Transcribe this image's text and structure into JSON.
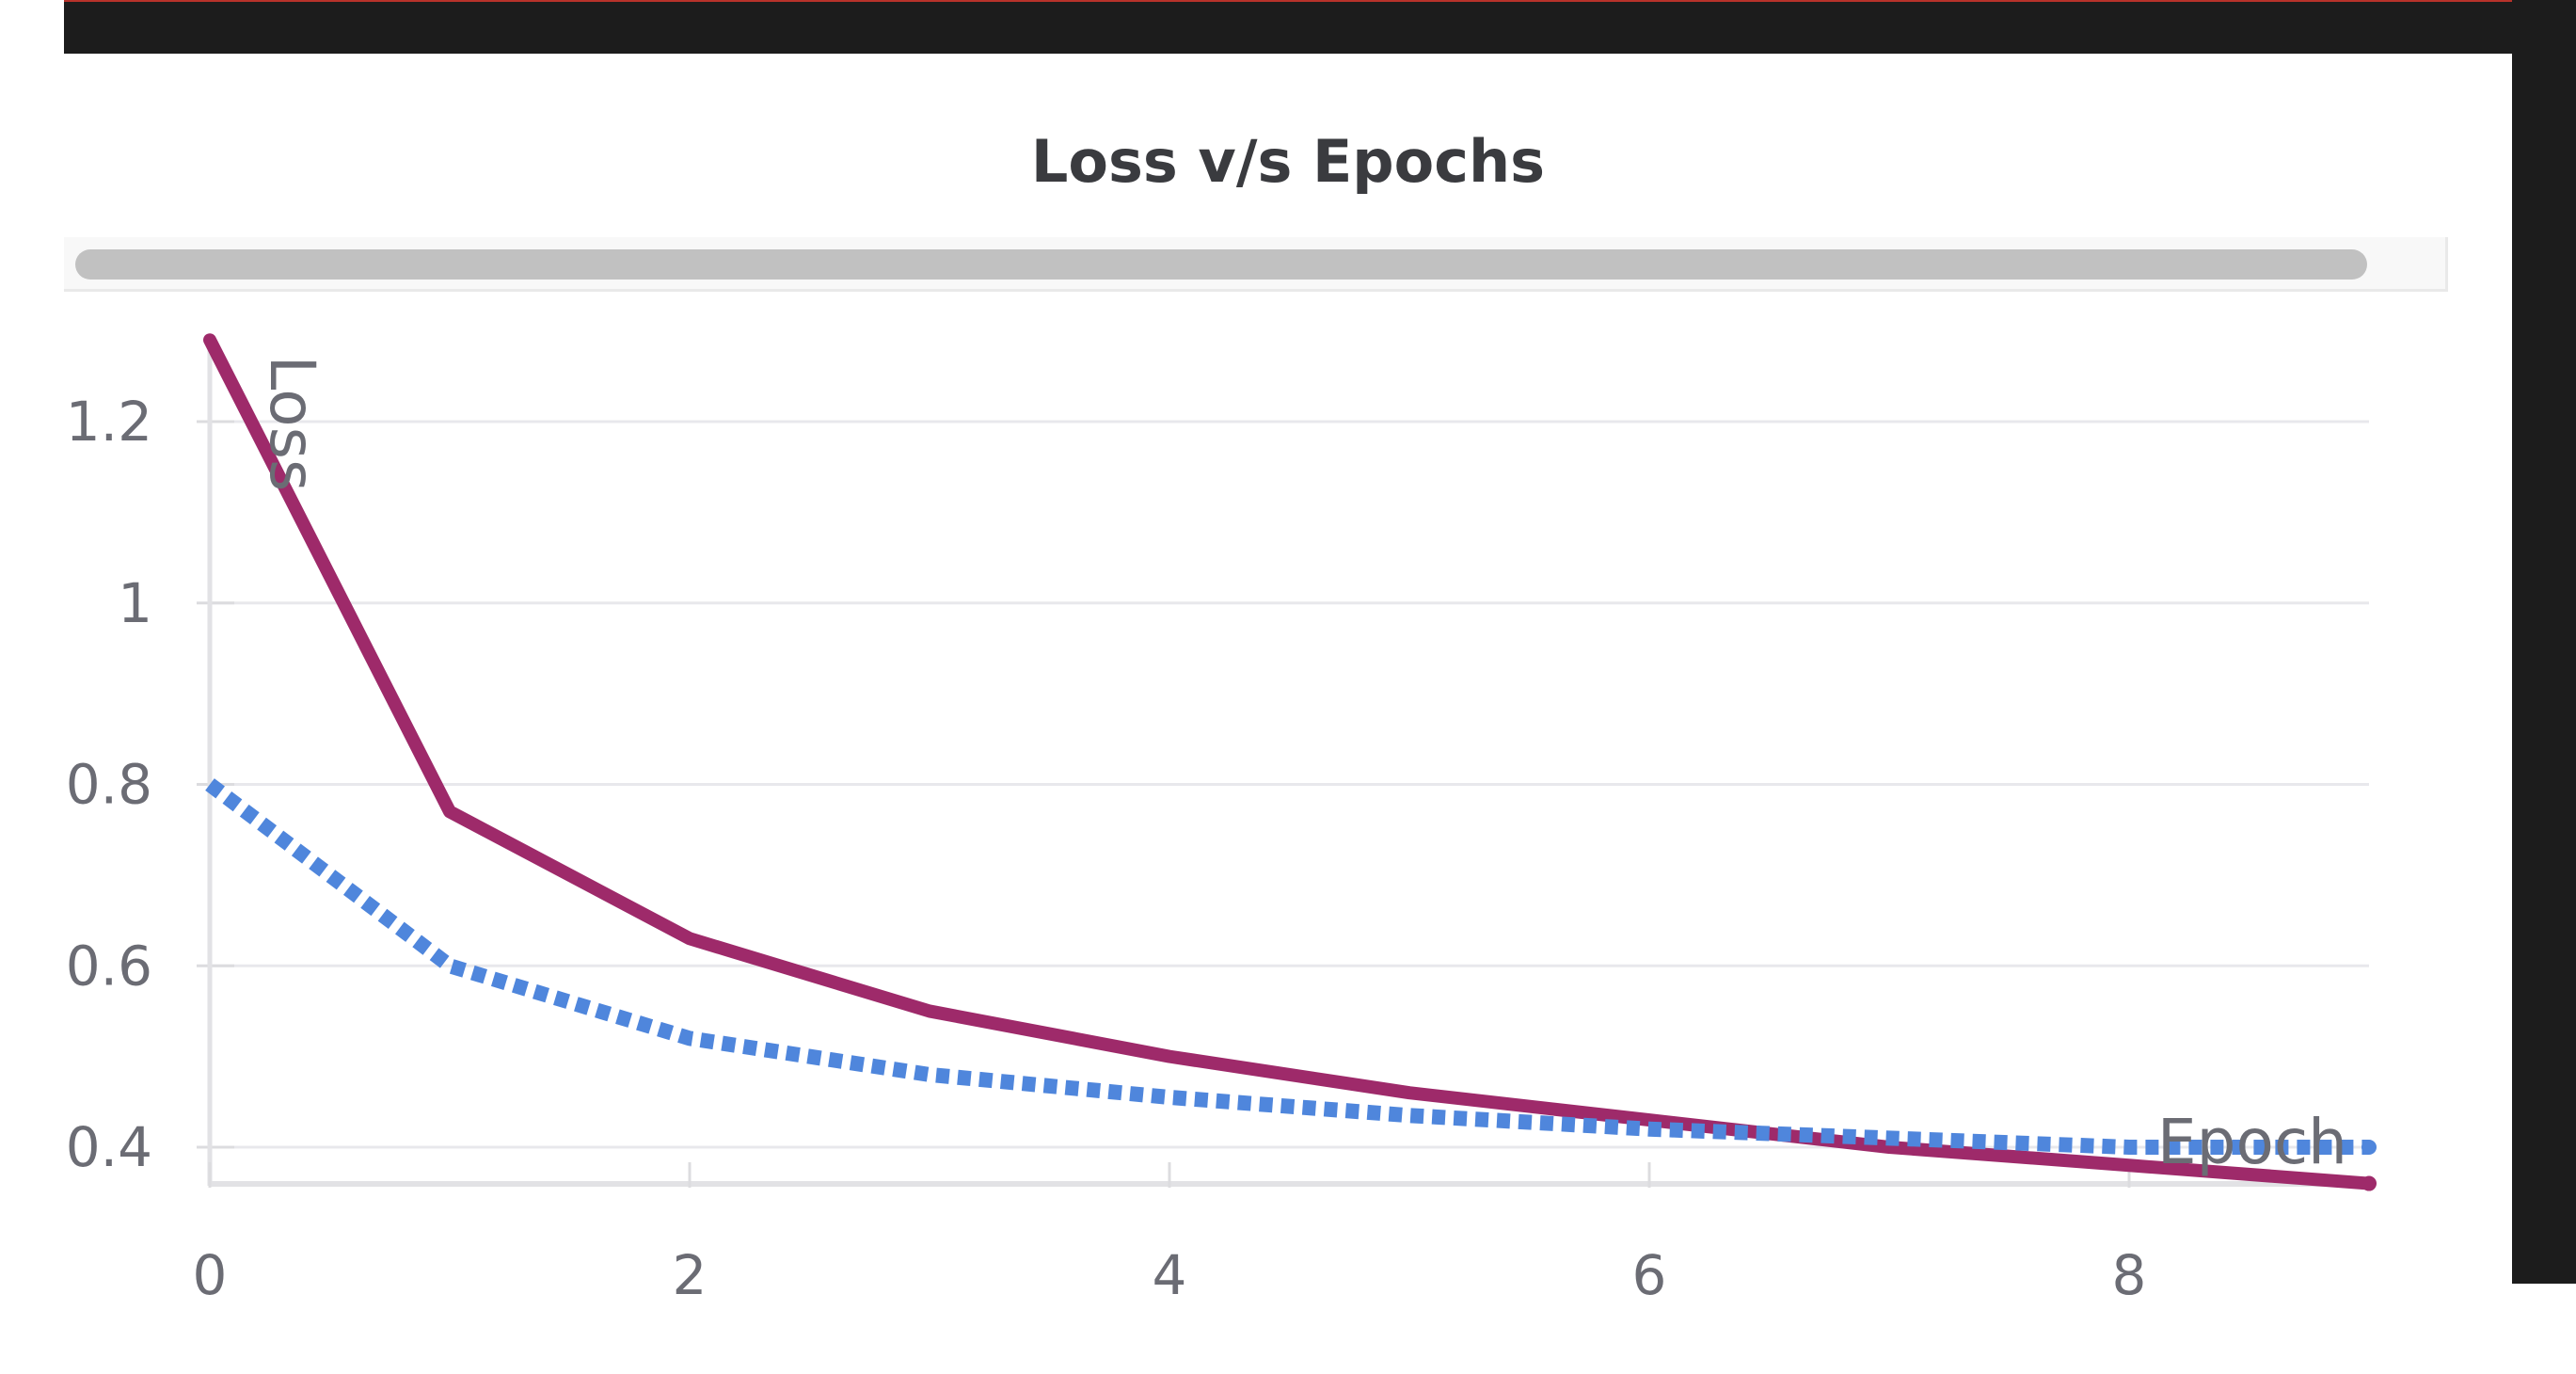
{
  "chart_data": {
    "type": "line",
    "title": "Loss v/s Epochs",
    "xlabel": "Epoch",
    "ylabel": "Loss",
    "x": [
      0,
      1,
      2,
      3,
      4,
      5,
      6,
      7,
      8,
      9
    ],
    "xlim": [
      0,
      9
    ],
    "ylim": [
      0.36,
      1.31
    ],
    "x_ticks": [
      0,
      2,
      4,
      6,
      8
    ],
    "y_ticks": [
      0.4,
      0.6,
      0.8,
      1,
      1.2
    ],
    "x_tick_labels": [
      "0",
      "2",
      "4",
      "6",
      "8"
    ],
    "y_tick_labels": [
      "0.4",
      "0.6",
      "0.8",
      "1",
      "1.2"
    ],
    "grid": "horizontal",
    "series": [
      {
        "values": [
          1.29,
          0.77,
          0.63,
          0.55,
          0.5,
          0.46,
          0.43,
          0.4,
          0.38,
          0.36
        ],
        "color": "#9e2a6a",
        "style": "solid"
      },
      {
        "values": [
          0.8,
          0.6,
          0.52,
          0.48,
          0.455,
          0.435,
          0.42,
          0.41,
          0.4,
          0.4
        ],
        "color": "#4f86dc",
        "style": "dotted"
      }
    ]
  }
}
